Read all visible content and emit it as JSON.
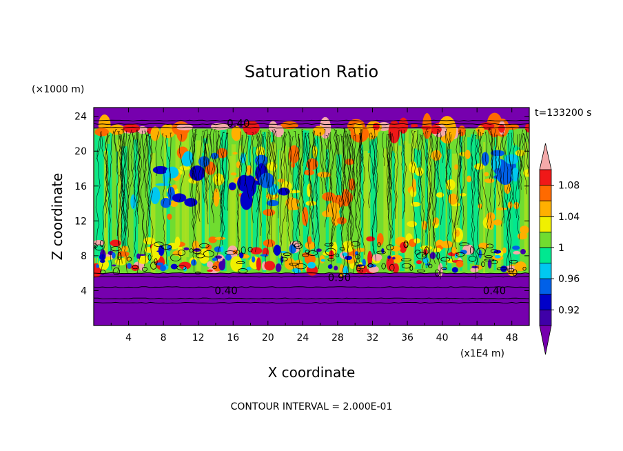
{
  "chart_data": {
    "type": "heatmap",
    "title": "Saturation Ratio",
    "xlabel": "X coordinate",
    "ylabel": "Z coordinate",
    "x_unit": "(x1E4 m)",
    "y_unit": "(×1000 m)",
    "time_label": "t=133200 s",
    "footer": "CONTOUR INTERVAL = 2.000E-01",
    "xlim": [
      0,
      50
    ],
    "ylim": [
      0,
      25
    ],
    "x_ticks": [
      4,
      8,
      12,
      16,
      20,
      24,
      28,
      32,
      36,
      40,
      44,
      48
    ],
    "y_ticks": [
      4,
      8,
      12,
      16,
      20,
      24
    ],
    "colorbar": {
      "levels": [
        0.9,
        0.92,
        0.94,
        0.96,
        0.98,
        1.0,
        1.02,
        1.04,
        1.06,
        1.08,
        1.1
      ],
      "labels": [
        "0.92",
        "0.96",
        "1",
        "1.04",
        "1.08"
      ],
      "label_values": [
        0.92,
        0.96,
        1.0,
        1.04,
        1.08
      ],
      "colors": [
        "#3f00a8",
        "#0000c8",
        "#0060e8",
        "#00c8f0",
        "#00e890",
        "#70dc30",
        "#f0f000",
        "#ffb000",
        "#ff6a00",
        "#f01818"
      ],
      "under_color": "#7600ae",
      "over_color": "#f4aaaa",
      "extend": "both"
    },
    "contour_labels": [
      {
        "text": "0.40",
        "x": 16.6,
        "y": 23.2
      },
      {
        "text": "0.40",
        "x": 15.2,
        "y": 4.0
      },
      {
        "text": "0.90",
        "x": 28.2,
        "y": 5.5
      },
      {
        "text": "0.40",
        "x": 46.0,
        "y": 4.0
      }
    ]
  }
}
